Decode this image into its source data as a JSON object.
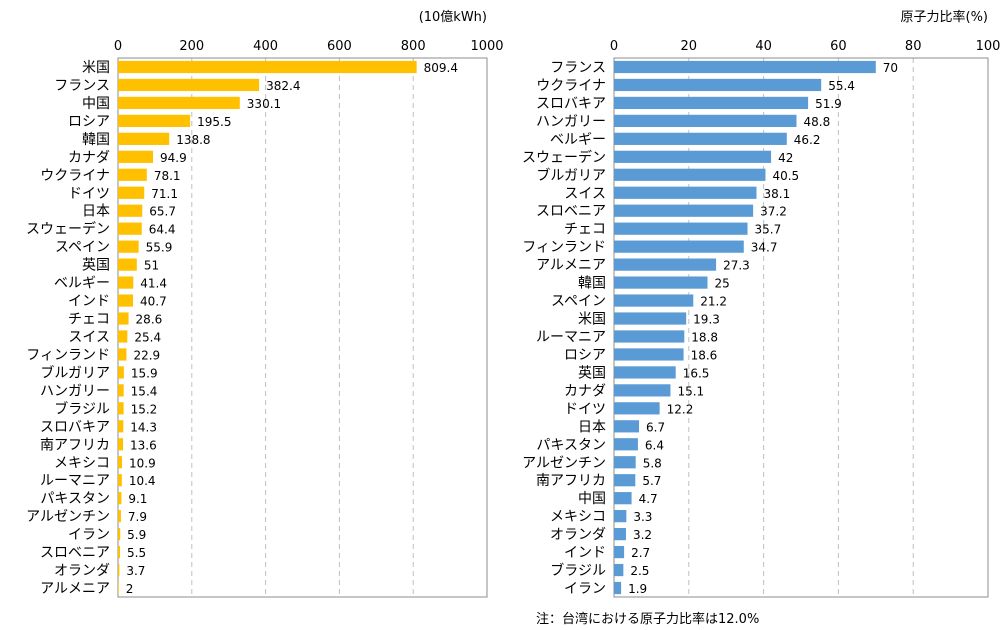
{
  "charts": [
    {
      "type": "bar",
      "orientation": "horizontal",
      "unit_label": "(10億kWh)",
      "xlim": [
        0,
        1000
      ],
      "ticks": [
        0,
        200,
        400,
        600,
        800,
        1000
      ],
      "color": "#FFC000",
      "grid": "dashed-vertical",
      "categories": [
        "米国",
        "フランス",
        "中国",
        "ロシア",
        "韓国",
        "カナダ",
        "ウクライナ",
        "ドイツ",
        "日本",
        "スウェーデン",
        "スペイン",
        "英国",
        "ベルギー",
        "インド",
        "チェコ",
        "スイス",
        "フィンランド",
        "ブルガリア",
        "ハンガリー",
        "ブラジル",
        "スロバキア",
        "南アフリカ",
        "メキシコ",
        "ルーマニア",
        "パキスタン",
        "アルゼンチン",
        "イラン",
        "スロベニア",
        "オランダ",
        "アルメニア"
      ],
      "values": [
        809.4,
        382.4,
        330.1,
        195.5,
        138.8,
        94.9,
        78.1,
        71.1,
        65.7,
        64.4,
        55.9,
        51,
        41.4,
        40.7,
        28.6,
        25.4,
        22.9,
        15.9,
        15.4,
        15.2,
        14.3,
        13.6,
        10.9,
        10.4,
        9.1,
        7.9,
        5.9,
        5.5,
        3.7,
        2
      ],
      "value_labels": [
        "809.4",
        "382.4",
        "330.1",
        "195.5",
        "138.8",
        "94.9",
        "78.1",
        "71.1",
        "65.7",
        "64.4",
        "55.9",
        "51",
        "41.4",
        "40.7",
        "28.6",
        "25.4",
        "22.9",
        "15.9",
        "15.4",
        "15.2",
        "14.3",
        "13.6",
        "10.9",
        "10.4",
        "9.1",
        "7.9",
        "5.9",
        "5.5",
        "3.7",
        "2"
      ]
    },
    {
      "type": "bar",
      "orientation": "horizontal",
      "unit_label": "原子力比率(%)",
      "xlim": [
        0,
        100
      ],
      "ticks": [
        0,
        20,
        40,
        60,
        80,
        100
      ],
      "color": "#5B9BD5",
      "grid": "dashed-vertical",
      "categories": [
        "フランス",
        "ウクライナ",
        "スロバキア",
        "ハンガリー",
        "ベルギー",
        "スウェーデン",
        "ブルガリア",
        "スイス",
        "スロベニア",
        "チェコ",
        "フィンランド",
        "アルメニア",
        "韓国",
        "スペイン",
        "米国",
        "ルーマニア",
        "ロシア",
        "英国",
        "カナダ",
        "ドイツ",
        "日本",
        "パキスタン",
        "アルゼンチン",
        "南アフリカ",
        "中国",
        "メキシコ",
        "オランダ",
        "インド",
        "ブラジル",
        "イラン"
      ],
      "values": [
        70,
        55.4,
        51.9,
        48.8,
        46.2,
        42,
        40.5,
        38.1,
        37.2,
        35.7,
        34.7,
        27.3,
        25,
        21.2,
        19.3,
        18.8,
        18.6,
        16.5,
        15.1,
        12.2,
        6.7,
        6.4,
        5.8,
        5.7,
        4.7,
        3.3,
        3.2,
        2.7,
        2.5,
        1.9
      ],
      "value_labels": [
        "70",
        "55.4",
        "51.9",
        "48.8",
        "46.2",
        "42",
        "40.5",
        "38.1",
        "37.2",
        "35.7",
        "34.7",
        "27.3",
        "25",
        "21.2",
        "19.3",
        "18.8",
        "18.6",
        "16.5",
        "15.1",
        "12.2",
        "6.7",
        "6.4",
        "5.8",
        "5.7",
        "4.7",
        "3.3",
        "3.2",
        "2.7",
        "2.5",
        "1.9"
      ]
    }
  ],
  "note": "注：台湾における原子力比率は12.0%"
}
